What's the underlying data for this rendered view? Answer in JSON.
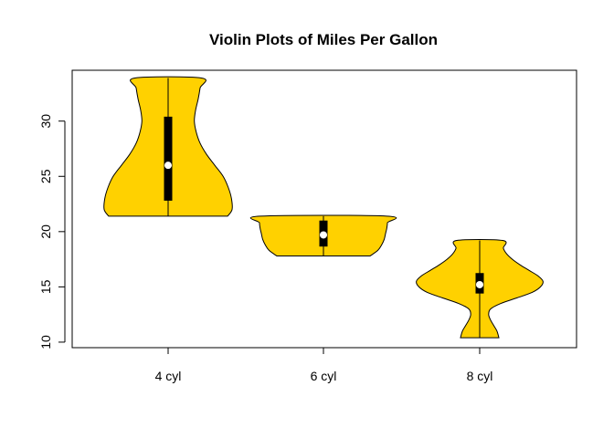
{
  "chart_data": {
    "type": "violin",
    "title": "Violin Plots of Miles Per Gallon",
    "xlabel": "",
    "ylabel": "",
    "categories": [
      "4 cyl",
      "6 cyl",
      "8 cyl"
    ],
    "y_ticks": [
      "10",
      "15",
      "20",
      "25",
      "30"
    ],
    "ylim": [
      9.5,
      34.6
    ],
    "grid": false,
    "legend": "none",
    "fill_color": "#FFD100",
    "series": [
      {
        "category": "4 cyl",
        "min": 21.4,
        "q1": 22.8,
        "median": 26.0,
        "q3": 30.4,
        "max": 33.9,
        "density": [
          [
            21.4,
            0.93
          ],
          [
            22.0,
            1.0
          ],
          [
            23.0,
            0.99
          ],
          [
            24.0,
            0.94
          ],
          [
            25.0,
            0.86
          ],
          [
            26.0,
            0.73
          ],
          [
            27.0,
            0.6
          ],
          [
            28.0,
            0.5
          ],
          [
            29.0,
            0.44
          ],
          [
            30.0,
            0.41
          ],
          [
            31.0,
            0.43
          ],
          [
            32.0,
            0.47
          ],
          [
            33.0,
            0.5
          ],
          [
            33.9,
            0.52
          ]
        ]
      },
      {
        "category": "6 cyl",
        "min": 17.8,
        "q1": 18.65,
        "median": 19.7,
        "q3": 21.0,
        "max": 21.4,
        "density": [
          [
            17.8,
            0.73
          ],
          [
            18.3,
            0.85
          ],
          [
            18.8,
            0.91
          ],
          [
            19.3,
            0.95
          ],
          [
            19.8,
            0.97
          ],
          [
            20.3,
            0.99
          ],
          [
            20.8,
            1.0
          ],
          [
            21.4,
            0.99
          ]
        ]
      },
      {
        "category": "8 cyl",
        "min": 10.4,
        "q1": 14.4,
        "median": 15.2,
        "q3": 16.25,
        "max": 19.2,
        "density": [
          [
            10.4,
            0.3
          ],
          [
            11.0,
            0.27
          ],
          [
            11.5,
            0.22
          ],
          [
            12.0,
            0.17
          ],
          [
            12.5,
            0.14
          ],
          [
            13.0,
            0.17
          ],
          [
            13.5,
            0.33
          ],
          [
            14.0,
            0.58
          ],
          [
            14.5,
            0.82
          ],
          [
            15.0,
            0.95
          ],
          [
            15.5,
            0.99
          ],
          [
            16.0,
            0.91
          ],
          [
            16.5,
            0.77
          ],
          [
            17.0,
            0.63
          ],
          [
            17.5,
            0.51
          ],
          [
            18.0,
            0.42
          ],
          [
            18.5,
            0.37
          ],
          [
            19.2,
            0.36
          ]
        ]
      }
    ]
  }
}
